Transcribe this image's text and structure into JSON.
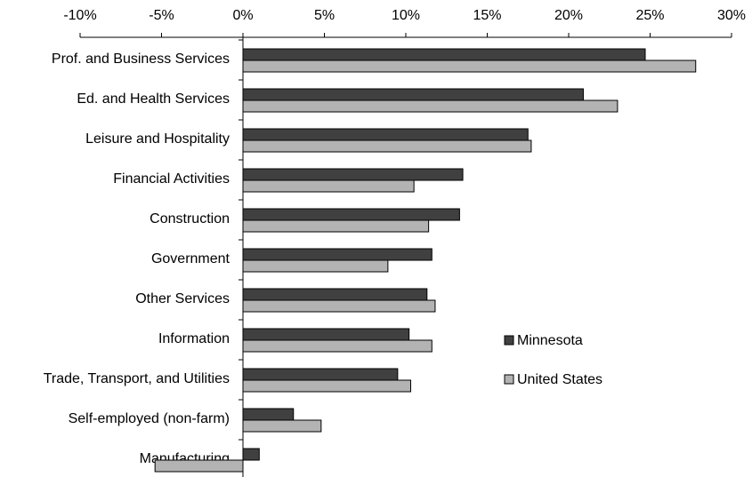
{
  "chart_data": {
    "type": "hbar",
    "categories": [
      "Prof. and Business Services",
      "Ed. and Health Services",
      "Leisure and Hospitality",
      "Financial Activities",
      "Construction",
      "Government",
      "Other Services",
      "Information",
      "Trade, Transport, and Utilities",
      "Self-employed (non-farm)",
      "Manufacturing"
    ],
    "series": [
      {
        "name": "Minnesota",
        "color": "#404040",
        "values": [
          24.7,
          20.9,
          17.5,
          13.5,
          13.3,
          11.6,
          11.3,
          10.2,
          9.5,
          3.1,
          1.0
        ]
      },
      {
        "name": "United States",
        "color": "#b3b3b3",
        "values": [
          27.8,
          23.0,
          17.7,
          10.5,
          11.4,
          8.9,
          11.8,
          11.6,
          10.3,
          4.8,
          -5.4
        ]
      }
    ],
    "xlim": [
      -10,
      30
    ],
    "xticks": [
      {
        "value": -10,
        "label": "-10%"
      },
      {
        "value": -5,
        "label": "-5%"
      },
      {
        "value": 0,
        "label": "0%"
      },
      {
        "value": 5,
        "label": "5%"
      },
      {
        "value": 10,
        "label": "10%"
      },
      {
        "value": 15,
        "label": "15%"
      },
      {
        "value": 20,
        "label": "20%"
      },
      {
        "value": 25,
        "label": "25%"
      },
      {
        "value": 30,
        "label": "30%"
      }
    ],
    "legend": "center right"
  }
}
